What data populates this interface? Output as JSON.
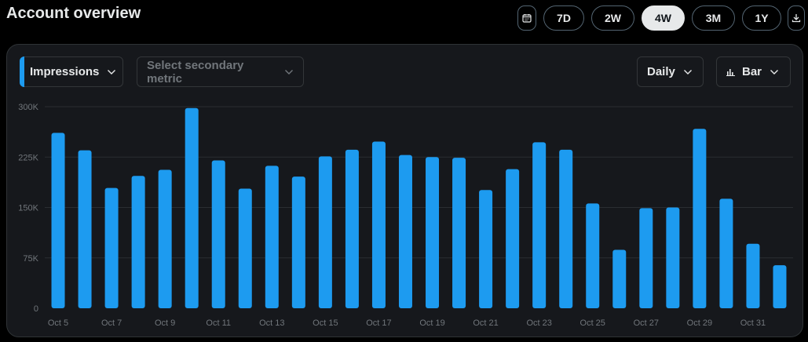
{
  "header": {
    "title": "Account overview"
  },
  "range_buttons": [
    {
      "label": "7D",
      "active": false
    },
    {
      "label": "2W",
      "active": false
    },
    {
      "label": "4W",
      "active": true
    },
    {
      "label": "3M",
      "active": false
    },
    {
      "label": "1Y",
      "active": false
    }
  ],
  "icons": {
    "calendar": "calendar-icon",
    "download": "download-icon",
    "chevron": "chevron-down-icon",
    "bar": "bar-chart-icon"
  },
  "controls": {
    "primary_metric": "Impressions",
    "secondary_metric_placeholder": "Select secondary metric",
    "interval": "Daily",
    "chart_type": "Bar"
  },
  "colors": {
    "bar": "#1d9bf0",
    "grid": "#2a2d31",
    "accent": "#1d9bf0"
  },
  "chart_data": {
    "type": "bar",
    "categories": [
      "Oct 5",
      "Oct 6",
      "Oct 7",
      "Oct 8",
      "Oct 9",
      "Oct 10",
      "Oct 11",
      "Oct 12",
      "Oct 13",
      "Oct 14",
      "Oct 15",
      "Oct 16",
      "Oct 17",
      "Oct 18",
      "Oct 19",
      "Oct 20",
      "Oct 21",
      "Oct 22",
      "Oct 23",
      "Oct 24",
      "Oct 25",
      "Oct 26",
      "Oct 27",
      "Oct 28",
      "Oct 29",
      "Oct 30",
      "Oct 31",
      "Nov 1"
    ],
    "tick_labels": [
      "Oct 5",
      "Oct 7",
      "Oct 9",
      "Oct 11",
      "Oct 13",
      "Oct 15",
      "Oct 17",
      "Oct 19",
      "Oct 21",
      "Oct 23",
      "Oct 25",
      "Oct 27",
      "Oct 29",
      "Oct 31"
    ],
    "series": [
      {
        "values": [
          261000,
          235000,
          179000,
          197000,
          206000,
          298000,
          220000,
          178000,
          212000,
          196000,
          226000,
          236000,
          248000,
          228000,
          225000,
          224000,
          176000,
          207000,
          247000,
          236000,
          156000,
          87000,
          149000,
          150000,
          267000,
          163000,
          96000,
          64000
        ]
      }
    ],
    "ylim": [
      0,
      300000
    ],
    "yticks": [
      0,
      75000,
      150000,
      225000,
      300000
    ],
    "ytick_labels": [
      "0",
      "75K",
      "150K",
      "225K",
      "300K"
    ],
    "grid": true
  }
}
